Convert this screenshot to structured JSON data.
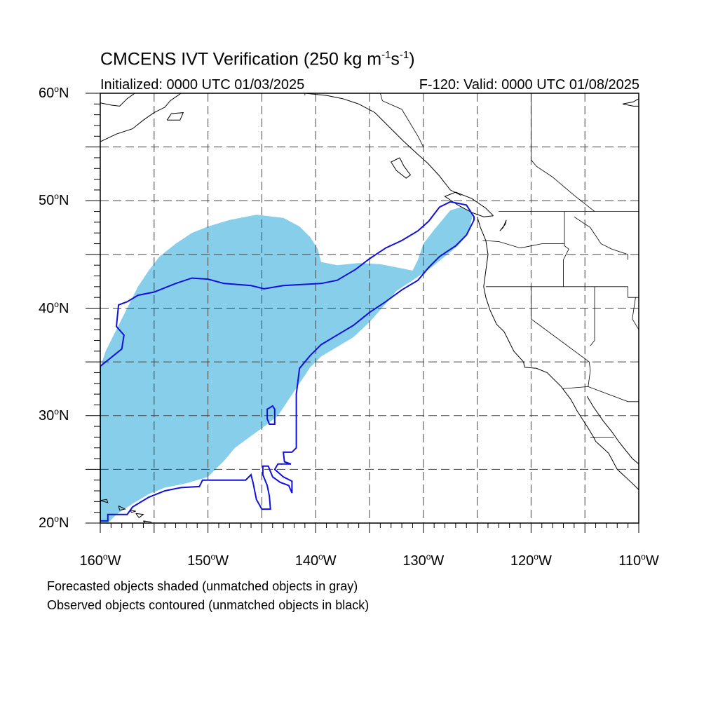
{
  "title": {
    "prefix": "CMCENS IVT Verification (250 kg m",
    "exp1": "-1",
    "mid": "s",
    "exp2": "-1",
    "suffix": ")"
  },
  "initialized": "Initialized: 0000 UTC 01/03/2025",
  "valid": "F-120: Valid: 0000 UTC 01/08/2025",
  "map": {
    "lon_range": [
      -160,
      -110
    ],
    "lat_range": [
      20,
      60
    ],
    "grid_style": "dashed",
    "lat_labels": [
      {
        "lat": 60,
        "num": "60",
        "hemi": "N"
      },
      {
        "lat": 50,
        "num": "50",
        "hemi": "N"
      },
      {
        "lat": 40,
        "num": "40",
        "hemi": "N"
      },
      {
        "lat": 30,
        "num": "30",
        "hemi": "N"
      },
      {
        "lat": 20,
        "num": "20",
        "hemi": "N"
      }
    ],
    "lon_labels": [
      {
        "lon": -160,
        "num": "160",
        "hemi": "W"
      },
      {
        "lon": -150,
        "num": "150",
        "hemi": "W"
      },
      {
        "lon": -140,
        "num": "140",
        "hemi": "W"
      },
      {
        "lon": -130,
        "num": "130",
        "hemi": "W"
      },
      {
        "lon": -120,
        "num": "120",
        "hemi": "W"
      },
      {
        "lon": -110,
        "num": "110",
        "hemi": "W"
      }
    ],
    "forecast_color": "#87ceeb",
    "observed_color": "#1010e0",
    "coast_color": "#000000"
  },
  "forecast_object": [
    [
      -160,
      34.5
    ],
    [
      -159.5,
      36
    ],
    [
      -158.5,
      38
    ],
    [
      -157.5,
      40
    ],
    [
      -156.5,
      42
    ],
    [
      -155.5,
      43.5
    ],
    [
      -154.5,
      44.8
    ],
    [
      -153,
      46
    ],
    [
      -151.5,
      47
    ],
    [
      -150,
      47.6
    ],
    [
      -148,
      48.2
    ],
    [
      -145.5,
      48.7
    ],
    [
      -143,
      48.4
    ],
    [
      -141.5,
      47.6
    ],
    [
      -140.5,
      46.6
    ],
    [
      -139.8,
      45.5
    ],
    [
      -139.5,
      44.3
    ],
    [
      -138,
      44
    ],
    [
      -136,
      44.2
    ],
    [
      -134,
      44.1
    ],
    [
      -132,
      43.7
    ],
    [
      -131,
      43.5
    ],
    [
      -130.5,
      44.5
    ],
    [
      -130,
      46
    ],
    [
      -129,
      47.3
    ],
    [
      -127.5,
      49.1
    ],
    [
      -126.5,
      49.4
    ],
    [
      -125.4,
      48.8
    ],
    [
      -125.8,
      47
    ],
    [
      -126.8,
      45.8
    ],
    [
      -128,
      44.8
    ],
    [
      -129.5,
      43.6
    ],
    [
      -131,
      42.6
    ],
    [
      -132.5,
      41.6
    ],
    [
      -133.5,
      40.4
    ],
    [
      -135,
      38.7
    ],
    [
      -136.5,
      37.3
    ],
    [
      -138,
      36.4
    ],
    [
      -139.5,
      35.5
    ],
    [
      -140.5,
      34.5
    ],
    [
      -141.5,
      33
    ],
    [
      -142.5,
      31.5
    ],
    [
      -143.5,
      30
    ],
    [
      -144.5,
      29.2
    ],
    [
      -146,
      28.1
    ],
    [
      -147.5,
      27
    ],
    [
      -148.5,
      25.8
    ],
    [
      -150,
      24.3
    ],
    [
      -152,
      23.7
    ],
    [
      -154,
      23.3
    ],
    [
      -155.5,
      22.7
    ],
    [
      -157,
      21.8
    ],
    [
      -158.5,
      20.8
    ],
    [
      -159.3,
      20
    ],
    [
      -160,
      20
    ]
  ],
  "observed_contours": [
    [
      [
        -160,
        20.2
      ],
      [
        -159.3,
        20.2
      ],
      [
        -159.3,
        20.8
      ],
      [
        -157.5,
        20.8
      ],
      [
        -157,
        21.5
      ],
      [
        -155.5,
        22.4
      ],
      [
        -154,
        23
      ],
      [
        -152.5,
        23.3
      ],
      [
        -150.8,
        23.4
      ],
      [
        -150.5,
        24
      ],
      [
        -146.5,
        24
      ],
      [
        -146,
        24.5
      ],
      [
        -145.8,
        23.7
      ],
      [
        -145.5,
        22.2
      ],
      [
        -145,
        21.3
      ],
      [
        -144.2,
        21.3
      ],
      [
        -144.3,
        22.5
      ],
      [
        -144.5,
        23.5
      ],
      [
        -144.9,
        24.5
      ],
      [
        -144.9,
        25.3
      ],
      [
        -144.4,
        25.3
      ],
      [
        -144,
        24.3
      ],
      [
        -143.3,
        23.8
      ],
      [
        -142.5,
        23.5
      ],
      [
        -142.2,
        22.8
      ],
      [
        -142.2,
        23.9
      ],
      [
        -143,
        24.3
      ],
      [
        -143.8,
        25
      ],
      [
        -143.5,
        25.5
      ],
      [
        -142.3,
        25.5
      ],
      [
        -142.9,
        25.7
      ],
      [
        -143,
        26.6
      ],
      [
        -142.2,
        26.6
      ],
      [
        -141.8,
        27
      ],
      [
        -141.8,
        32
      ],
      [
        -141.5,
        34.4
      ],
      [
        -140.5,
        35.6
      ],
      [
        -139.5,
        36.6
      ],
      [
        -138,
        37.5
      ],
      [
        -136.5,
        38.4
      ],
      [
        -135,
        39.6
      ],
      [
        -133.5,
        40.6
      ],
      [
        -132,
        41.7
      ],
      [
        -130.5,
        42.6
      ],
      [
        -129.5,
        43.8
      ],
      [
        -128.5,
        44.8
      ],
      [
        -127,
        45.8
      ],
      [
        -126,
        46.8
      ],
      [
        -125.3,
        48.2
      ],
      [
        -125.3,
        48.5
      ],
      [
        -126,
        49.6
      ],
      [
        -127.5,
        49.9
      ],
      [
        -128.5,
        49.4
      ],
      [
        -129.5,
        48.1
      ],
      [
        -130.5,
        47.2
      ],
      [
        -132,
        46.3
      ],
      [
        -133.5,
        45.6
      ],
      [
        -135,
        44.6
      ],
      [
        -136.3,
        43.6
      ],
      [
        -138,
        42.6
      ],
      [
        -139.5,
        42.3
      ],
      [
        -143,
        42.1
      ],
      [
        -144.8,
        41.8
      ],
      [
        -146,
        42.1
      ],
      [
        -148.5,
        42.3
      ],
      [
        -150,
        42.7
      ],
      [
        -151.5,
        42.8
      ],
      [
        -153,
        42.3
      ],
      [
        -155,
        41.5
      ],
      [
        -156.5,
        41.2
      ],
      [
        -157.5,
        40.6
      ],
      [
        -158.3,
        40.3
      ],
      [
        -158.5,
        38.3
      ],
      [
        -157.8,
        37.5
      ],
      [
        -158,
        36.2
      ],
      [
        -159,
        35.4
      ],
      [
        -160,
        34.6
      ]
    ],
    [
      [
        -144.3,
        29.2
      ],
      [
        -143.8,
        29.2
      ],
      [
        -143.8,
        30.6
      ],
      [
        -144,
        30.9
      ],
      [
        -144.5,
        30.6
      ],
      [
        -144.5,
        29.7
      ],
      [
        -144.3,
        29.2
      ]
    ]
  ],
  "coastlines": [
    [
      [
        -125,
        48.5
      ],
      [
        -124.7,
        47.5
      ],
      [
        -124.2,
        46.3
      ],
      [
        -124,
        45
      ],
      [
        -124.2,
        43.5
      ],
      [
        -124.4,
        42
      ],
      [
        -124.2,
        41
      ],
      [
        -123.8,
        39.8
      ],
      [
        -123.2,
        38.5
      ],
      [
        -122.5,
        37.8
      ],
      [
        -122,
        36.8
      ],
      [
        -121.6,
        36
      ],
      [
        -120.7,
        35
      ],
      [
        -120.6,
        34.5
      ],
      [
        -119.5,
        34.4
      ],
      [
        -118.5,
        34
      ],
      [
        -117.2,
        32.7
      ],
      [
        -116.3,
        31.5
      ],
      [
        -115.7,
        30.4
      ],
      [
        -114.8,
        29
      ],
      [
        -114.2,
        28
      ],
      [
        -114,
        27.6
      ],
      [
        -112.8,
        26.5
      ],
      [
        -112,
        25
      ],
      [
        -110.5,
        23.6
      ],
      [
        -110,
        23.1
      ]
    ],
    [
      [
        -114.8,
        31.8
      ],
      [
        -114.2,
        30.8
      ],
      [
        -113.3,
        29.5
      ],
      [
        -112.5,
        28.5
      ],
      [
        -111.8,
        27.5
      ],
      [
        -110.6,
        26
      ],
      [
        -110,
        25.5
      ]
    ],
    [
      [
        -126.5,
        50.5
      ],
      [
        -127.5,
        51
      ],
      [
        -128.5,
        52.3
      ],
      [
        -129.6,
        53.5
      ],
      [
        -130.5,
        54.3
      ],
      [
        -131.8,
        55.5
      ],
      [
        -133,
        56.7
      ],
      [
        -134.5,
        58.2
      ],
      [
        -136,
        59
      ],
      [
        -137.5,
        59.5
      ],
      [
        -139,
        59.8
      ],
      [
        -141,
        60
      ]
    ],
    [
      [
        -123.5,
        48.6
      ],
      [
        -124.4,
        48.5
      ],
      [
        -125.5,
        48.9
      ],
      [
        -126.8,
        49.6
      ],
      [
        -128,
        50.4
      ],
      [
        -127,
        50.8
      ],
      [
        -125.5,
        50.2
      ],
      [
        -124.2,
        49.3
      ],
      [
        -123.5,
        48.6
      ]
    ],
    [
      [
        -132.2,
        54
      ],
      [
        -131.8,
        53.2
      ],
      [
        -131.2,
        52.4
      ],
      [
        -131.6,
        52.1
      ],
      [
        -132.5,
        52.8
      ],
      [
        -133,
        53.6
      ],
      [
        -132.2,
        54
      ]
    ],
    [
      [
        -122.3,
        48.2
      ],
      [
        -122.6,
        47.5
      ],
      [
        -122.9,
        47.2
      ],
      [
        -122.4,
        47.8
      ],
      [
        -122.3,
        48.2
      ]
    ],
    [
      [
        -160,
        55.5
      ],
      [
        -158.5,
        56.2
      ],
      [
        -157,
        56.7
      ],
      [
        -156,
        57.5
      ],
      [
        -155,
        58.2
      ],
      [
        -154,
        58.7
      ],
      [
        -153.5,
        59.3
      ],
      [
        -152.5,
        60
      ]
    ],
    [
      [
        -153.8,
        57.5
      ],
      [
        -152.6,
        57.5
      ],
      [
        -152.3,
        58.2
      ],
      [
        -153.4,
        58.1
      ],
      [
        -153.8,
        57.5
      ]
    ],
    [
      [
        -160,
        59.1
      ],
      [
        -159,
        58.9
      ],
      [
        -158.2,
        58.8
      ],
      [
        -157.5,
        59.5
      ],
      [
        -156.8,
        60
      ]
    ],
    [
      [
        -110,
        59.5
      ],
      [
        -110.5,
        59.2
      ],
      [
        -111.5,
        59
      ],
      [
        -110.5,
        58.8
      ],
      [
        -110,
        58.8
      ]
    ],
    [
      [
        -160,
        22.1
      ],
      [
        -159.4,
        22.2
      ],
      [
        -159.3,
        21.9
      ],
      [
        -160,
        22.1
      ]
    ],
    [
      [
        -158.3,
        21.6
      ],
      [
        -157.7,
        21.3
      ],
      [
        -158.2,
        21.2
      ],
      [
        -158.3,
        21.6
      ]
    ],
    [
      [
        -157.2,
        21.2
      ],
      [
        -156.7,
        21.1
      ],
      [
        -157.1,
        21.0
      ],
      [
        -157.2,
        21.2
      ]
    ],
    [
      [
        -156.7,
        20.9
      ],
      [
        -156,
        20.8
      ],
      [
        -156.4,
        20.5
      ],
      [
        -156.7,
        20.9
      ]
    ],
    [
      [
        -156,
        20.2
      ],
      [
        -155.3,
        20.1
      ],
      [
        -155,
        19.7
      ],
      [
        -155.5,
        19.6
      ],
      [
        -156,
        20.2
      ]
    ]
  ],
  "borders": [
    [
      [
        -123,
        49
      ],
      [
        -110,
        49
      ]
    ],
    [
      [
        -124.2,
        42
      ],
      [
        -111,
        42
      ]
    ],
    [
      [
        -124.5,
        46.3
      ],
      [
        -123,
        46.2
      ],
      [
        -121,
        45.6
      ],
      [
        -119,
        46
      ],
      [
        -116.9,
        46
      ]
    ],
    [
      [
        -116.9,
        49
      ],
      [
        -116.9,
        45.8
      ],
      [
        -116.5,
        45.5
      ],
      [
        -117,
        44.5
      ],
      [
        -117,
        42
      ]
    ],
    [
      [
        -120,
        42
      ],
      [
        -120,
        39
      ],
      [
        -114.6,
        35
      ],
      [
        -114.5,
        34.2
      ],
      [
        -114.7,
        32.7
      ]
    ],
    [
      [
        -114.1,
        42
      ],
      [
        -114.1,
        37
      ],
      [
        -114.5,
        36.5
      ]
    ],
    [
      [
        -111,
        42
      ],
      [
        -111,
        41
      ],
      [
        -110,
        41
      ]
    ],
    [
      [
        -111,
        44.5
      ],
      [
        -111,
        45
      ],
      [
        -112.5,
        45.5
      ],
      [
        -113.5,
        46
      ],
      [
        -114.5,
        47.5
      ],
      [
        -116,
        48.5
      ]
    ],
    [
      [
        -117.1,
        32.5
      ],
      [
        -114.7,
        32.7
      ],
      [
        -111,
        31.3
      ],
      [
        -110,
        31.3
      ]
    ],
    [
      [
        -114.5,
        28
      ],
      [
        -112.3,
        28
      ]
    ],
    [
      [
        -134,
        60
      ],
      [
        -133.8,
        59.3
      ],
      [
        -132,
        58.5
      ],
      [
        -130.5,
        56
      ],
      [
        -130,
        55
      ]
    ],
    [
      [
        -141,
        60
      ],
      [
        -141,
        59.8
      ]
    ],
    [
      [
        -120,
        60
      ],
      [
        -120,
        53.8
      ],
      [
        -119.5,
        53.2
      ],
      [
        -118,
        52.2
      ],
      [
        -116,
        50.5
      ],
      [
        -114.1,
        49
      ]
    ],
    [
      [
        -110,
        60
      ],
      [
        -110,
        49
      ]
    ],
    [
      [
        -110.3,
        41
      ],
      [
        -110.6,
        39
      ],
      [
        -110,
        38
      ]
    ]
  ]
}
